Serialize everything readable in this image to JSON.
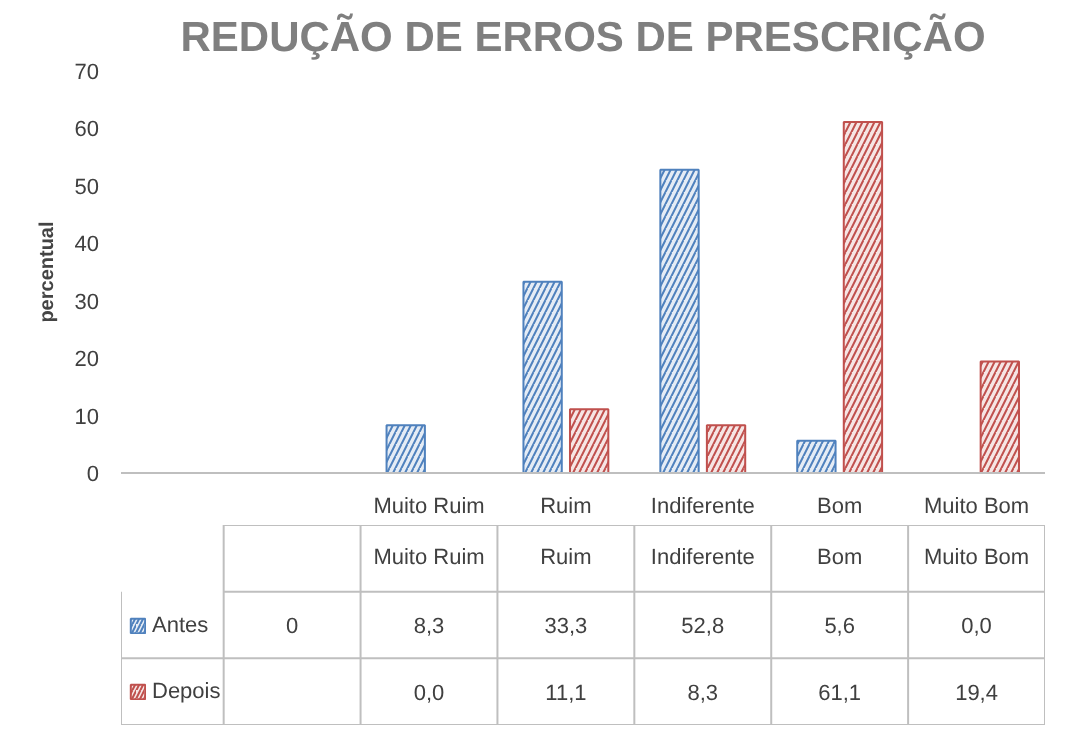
{
  "chart_data": {
    "type": "bar",
    "title": "REDUÇÃO DE ERROS DE PRESCRIÇÃO",
    "ylabel": "percentual",
    "categories": [
      null,
      "Muito Ruim",
      "Ruim",
      "Indiferente",
      "Bom",
      "Muito Bom"
    ],
    "ylim": [
      0,
      70
    ],
    "yticks": [
      0,
      10,
      20,
      30,
      40,
      50,
      60,
      70
    ],
    "grid": false,
    "legend": "bottom",
    "series": [
      {
        "name": "Antes",
        "color": "#4f81bd",
        "values": [
          0,
          8.3,
          33.3,
          52.8,
          5.6,
          0.0
        ],
        "value_labels": [
          "0",
          "8,3",
          "33,3",
          "52,8",
          "5,6",
          "0,0"
        ]
      },
      {
        "name": "Depois",
        "color": "#c0504d",
        "values": [
          null,
          0.0,
          11.1,
          8.3,
          61.1,
          19.4
        ],
        "value_labels": [
          null,
          "0,0",
          "11,1",
          "8,3",
          "61,1",
          "19,4"
        ]
      }
    ]
  }
}
